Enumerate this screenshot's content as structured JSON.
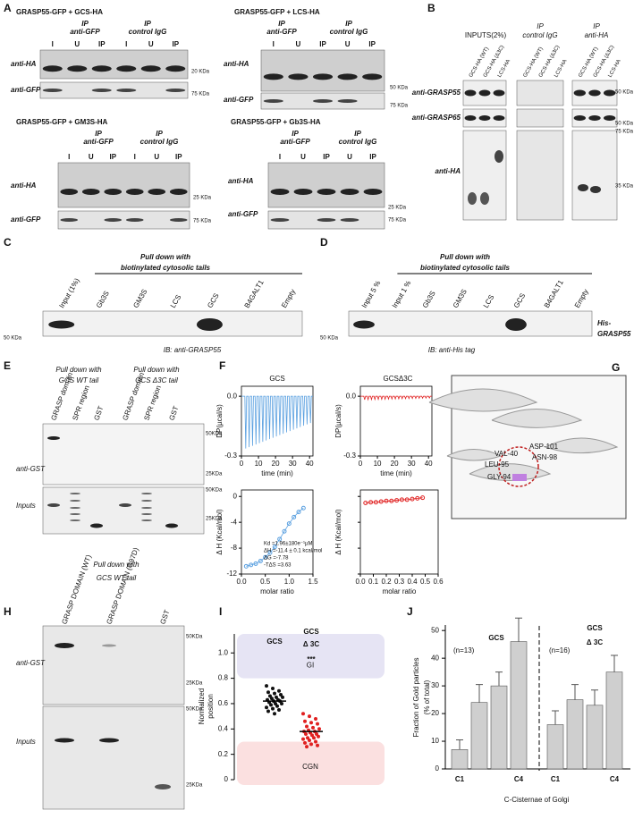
{
  "panel_a": {
    "label": "A",
    "gcs": {
      "title": "GRASP55-GFP + GCS-HA",
      "ip1": [
        "IP",
        "anti-GFP"
      ],
      "ip2": [
        "IP",
        "control IgG"
      ],
      "lanes": [
        "I",
        "U",
        "IP",
        "I",
        "U",
        "IP"
      ],
      "rows": [
        "anti-HA",
        "anti-GFP"
      ],
      "markers": [
        "20 KDa",
        "75 KDa"
      ]
    },
    "lcs": {
      "title": "GRASP55-GFP + LCS-HA",
      "ip1": [
        "IP",
        "anti-GFP"
      ],
      "ip2": [
        "IP",
        "control IgG"
      ],
      "lanes": [
        "I",
        "U",
        "IP",
        "U",
        "IP"
      ],
      "rows": [
        "anti-HA",
        "anti-GFP"
      ],
      "markers": [
        "50 KDa",
        "75 KDa"
      ]
    },
    "gm3s": {
      "title": "GRASP55-GFP + GM3S-HA",
      "ip1": [
        "IP",
        "anti-GFP"
      ],
      "ip2": [
        "IP",
        "control IgG"
      ],
      "lanes": [
        "I",
        "U",
        "IP",
        "I",
        "U",
        "IP"
      ],
      "rows": [
        "anti-HA",
        "anti-GFP"
      ],
      "markers": [
        "25 KDa",
        "75 KDa"
      ]
    },
    "gb3s": {
      "title": "GRASP55-GFP + Gb3S-HA",
      "ip1": [
        "IP",
        "anti-GFP"
      ],
      "ip2": [
        "IP",
        "control IgG"
      ],
      "lanes": [
        "I",
        "U",
        "IP",
        "U",
        "IP"
      ],
      "rows": [
        "anti-HA",
        "anti-GFP"
      ],
      "markers": [
        "25 KDa",
        "75 KDa"
      ]
    }
  },
  "panel_b": {
    "label": "B",
    "header_inputs": "INPUTS(2%)",
    "header_igg": [
      "IP",
      "control IgG"
    ],
    "header_ha": [
      "IP",
      "anti-HA"
    ],
    "lanes": [
      "GCS-HA (WT)",
      "GCS-HA (Δ3C)",
      "LCS-HA"
    ],
    "rows": [
      "anti-GRASP55",
      "anti-GRASP65",
      "anti-HA"
    ],
    "markers": [
      "50 KDa",
      "50 KDa",
      "75 KDa",
      "35 KDa"
    ]
  },
  "panel_c": {
    "label": "C",
    "header": [
      "Pull down with",
      "biotinylated cytosolic tails"
    ],
    "lanes": [
      "Input (1%)",
      "Gb3S",
      "GM3S",
      "LCS",
      "GCS",
      "B4GALT1",
      "Empty"
    ],
    "marker": "50 KDa",
    "ib": "IB: anti-GRASP55"
  },
  "panel_d": {
    "label": "D",
    "header": [
      "Pull down with",
      "biotinylated cytosolic tails"
    ],
    "lanes": [
      "Input 5 %",
      "Input 1 %",
      "Gb3S",
      "GM3S",
      "LCS",
      "GCS",
      "B4GALT1",
      "Empty"
    ],
    "marker": "50 KDa",
    "ib": "IB: anti-His tag",
    "side": [
      "His-",
      "GRASP55"
    ]
  },
  "panel_e": {
    "label": "E",
    "header_wt": [
      "Pull down with",
      "GCS WT tail"
    ],
    "header_d3c": [
      "Pull down with",
      "GCS Δ3C tail"
    ],
    "lanes": [
      "GRASP domain",
      "SPR region",
      "GST"
    ],
    "rows": [
      "anti-GST",
      "Inputs"
    ],
    "markers": [
      "50KDa",
      "25KDa",
      "50KDa",
      "25KDa"
    ]
  },
  "panel_f": {
    "label": "F",
    "title_wt": "GCS",
    "title_d3c": "GCSΔ3C",
    "dp_label": "DP(µcal/s)",
    "time_label": "time (min)",
    "dh_label": "Δ H (Kcal/mol)",
    "ratio_label": "molar ratio",
    "raw_ylim": [
      -0.3,
      0.05
    ],
    "raw_yticks": [
      {
        "value": 0,
        "label": "0.0"
      },
      -0.3
    ],
    "raw_xlim": [
      0,
      42
    ],
    "raw_xticks": [
      0,
      10,
      20,
      30,
      40
    ],
    "wt_ylim": [
      -12,
      1
    ],
    "wt_yticks": [
      0,
      -4,
      -8,
      -12
    ],
    "wt_xlim": [
      0,
      1.5
    ],
    "wt_xticks": [
      {
        "value": 0,
        "label": "0.0"
      },
      0.5,
      {
        "value": 1,
        "label": "1.0"
      },
      1.5
    ],
    "wt_x": [
      0.1,
      0.2,
      0.3,
      0.4,
      0.5,
      0.6,
      0.7,
      0.8,
      0.9,
      1.0,
      1.1,
      1.2,
      1.3
    ],
    "wt_y": [
      -10.8,
      -10.6,
      -10.4,
      -10,
      -9.4,
      -8.7,
      -7.8,
      -6.6,
      -5.4,
      -4.2,
      -3.2,
      -2.4,
      -1.8
    ],
    "d3c_xlim": [
      0,
      0.6
    ],
    "d3c_xticks": [
      {
        "value": 0,
        "label": "0.0"
      },
      0.1,
      0.2,
      0.3,
      0.4,
      0.5,
      0.6
    ],
    "d3c_x": [
      0.04,
      0.08,
      0.12,
      0.16,
      0.2,
      0.24,
      0.28,
      0.32,
      0.36,
      0.4,
      0.44,
      0.48
    ],
    "d3c_y": [
      -1,
      -0.9,
      -0.9,
      -0.8,
      -0.7,
      -0.7,
      -0.6,
      -0.5,
      -0.5,
      -0.4,
      -0.3,
      -0.2
    ],
    "fit": [
      "Kd   =1.96±180e⁻¹µM",
      "ΔH   =-11.4 ± 0.1 kcal/mol",
      "ΔG   =-7.78",
      "-TΔS =3.63"
    ]
  },
  "panel_g": {
    "label": "G",
    "residues": [
      "VAL-40",
      "ASP-101",
      "LEU-95",
      "ASN-98",
      "GLY-94"
    ]
  },
  "panel_h": {
    "label": "H",
    "header": [
      "Pull down with",
      "GCS WT tail"
    ],
    "lanes": [
      "GRASP DOMAIN (WT)",
      "GRASP DOMAIN (G97D)",
      "GST"
    ],
    "rows": [
      "anti-GST",
      "Inputs"
    ],
    "markers": [
      "50KDa",
      "25KDa",
      "50KDa",
      "25KDa"
    ]
  },
  "panel_i": {
    "label": "I",
    "ylabel": [
      "Normalized",
      "position"
    ],
    "ylim": [
      0,
      1.15
    ],
    "yticks": [
      0,
      0.2,
      0.4,
      0.6,
      0.8,
      {
        "value": 1,
        "label": "1.0"
      }
    ],
    "group_wt": "GCS",
    "group_d3c": [
      "GCS",
      "Δ 3C"
    ],
    "significance": "***",
    "region_top": "GI",
    "region_bottom": "CGN",
    "wt_values": [
      0.74,
      0.72,
      0.7,
      0.69,
      0.68,
      0.67,
      0.66,
      0.65,
      0.65,
      0.64,
      0.63,
      0.63,
      0.62,
      0.62,
      0.61,
      0.6,
      0.6,
      0.59,
      0.58,
      0.57,
      0.56,
      0.55,
      0.54,
      0.52
    ],
    "d3c_values": [
      0.52,
      0.5,
      0.48,
      0.46,
      0.45,
      0.44,
      0.42,
      0.41,
      0.4,
      0.39,
      0.38,
      0.38,
      0.37,
      0.36,
      0.36,
      0.35,
      0.34,
      0.33,
      0.33,
      0.32,
      0.31,
      0.3,
      0.29,
      0.28,
      0.27,
      0.26
    ],
    "means": [
      0.62,
      0.38
    ],
    "colors": [
      "#111111",
      "#e02020"
    ]
  },
  "panel_j": {
    "label": "J",
    "ylabel": [
      "Fraction of Gold particles",
      "(% of total)"
    ],
    "ylim": [
      0,
      52
    ],
    "yticks": [
      0,
      10,
      20,
      30,
      40,
      50
    ],
    "categories": [
      "C1",
      null,
      null,
      "C4"
    ],
    "xlabel": "C-Cisternae of Golgi",
    "color": "#cfcfcf",
    "series": [
      {
        "name": "GCS",
        "n": "(n=13)",
        "values": [
          7,
          24,
          30,
          46
        ],
        "errors": [
          3.5,
          6.5,
          5,
          8.5
        ]
      },
      {
        "name": [
          "GCS",
          "Δ 3C"
        ],
        "n": "(n=16)",
        "values": [
          16,
          25,
          23,
          35
        ],
        "errors": [
          5,
          5.5,
          5.5,
          6
        ]
      }
    ]
  }
}
